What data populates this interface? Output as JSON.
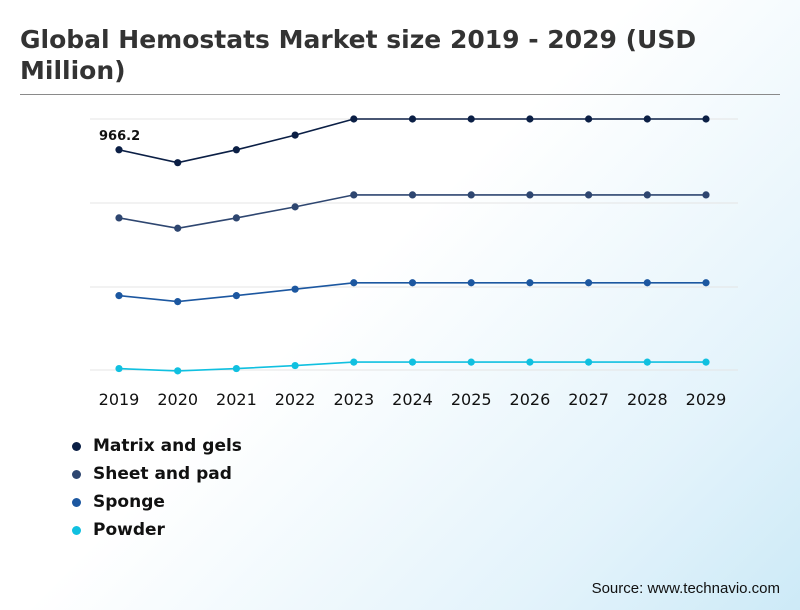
{
  "title": "Global Hemostats Market size 2019 - 2029 (USD Million)",
  "source": "Source: www.technavio.com",
  "colors": {
    "matrix": "#0b1f45",
    "sheet": "#2e4670",
    "sponge": "#1c57a0",
    "powder": "#10c0e0",
    "grid": "#e4e4e4"
  },
  "chart_data": {
    "type": "line",
    "x": [
      "2019",
      "2020",
      "2021",
      "2022",
      "2023",
      "2024",
      "2025",
      "2026",
      "2027",
      "2028",
      "2029"
    ],
    "series": [
      {
        "name": "Matrix and gels",
        "color": "#0b1f45",
        "values": [
          966.2,
          910,
          966.2,
          1030,
          1100,
          1100,
          1100,
          1100,
          1100,
          1100,
          1100
        ],
        "data_labels": [
          "966.2",
          "",
          "",
          "",
          "",
          "",
          "",
          "",
          "",
          "",
          ""
        ]
      },
      {
        "name": "Sheet and pad",
        "color": "#2e4670",
        "values": [
          670,
          625,
          670,
          718,
          770,
          770,
          770,
          770,
          770,
          770,
          770
        ],
        "data_labels": [
          "",
          "",
          "",
          "",
          "",
          "",
          "",
          "",
          "",
          "",
          ""
        ]
      },
      {
        "name": "Sponge",
        "color": "#1c57a0",
        "values": [
          332,
          306,
          332,
          360,
          388,
          388,
          388,
          388,
          388,
          388,
          388
        ],
        "data_labels": [
          "",
          "",
          "",
          "",
          "",
          "",
          "",
          "",
          "",
          "",
          ""
        ]
      },
      {
        "name": "Powder",
        "color": "#10c0e0",
        "values": [
          15,
          5,
          15,
          28,
          43,
          43,
          43,
          43,
          43,
          43,
          43
        ],
        "data_labels": [
          "",
          "",
          "",
          "",
          "",
          "",
          "",
          "",
          "",
          "",
          ""
        ]
      }
    ],
    "ylim": [
      0,
      1100
    ],
    "grid": true,
    "legend": "bottom-left",
    "xlabel": "",
    "ylabel": ""
  }
}
